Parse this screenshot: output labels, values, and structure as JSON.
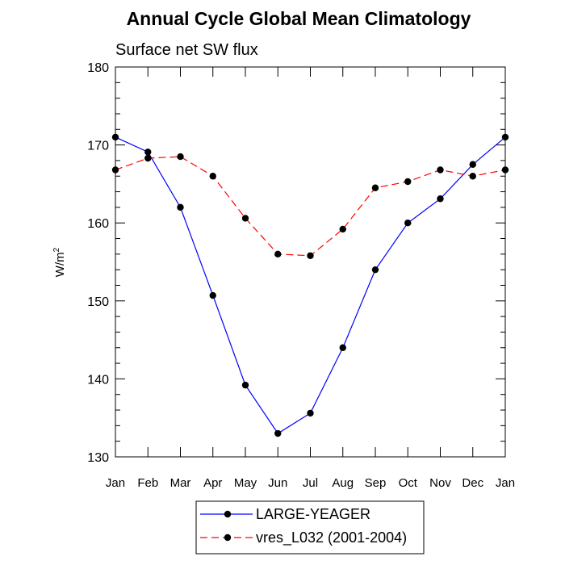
{
  "chart_data": {
    "type": "line",
    "title": "Annual Cycle Global Mean Climatology",
    "subtitle": "Surface net SW flux",
    "xlabel": "",
    "ylabel": "W/m",
    "ylabel_superscript": "2",
    "ylim": [
      130,
      180
    ],
    "yticks": [
      130,
      140,
      150,
      160,
      170,
      180
    ],
    "categories": [
      "Jan",
      "Feb",
      "Mar",
      "Apr",
      "May",
      "Jun",
      "Jul",
      "Aug",
      "Sep",
      "Oct",
      "Nov",
      "Dec",
      "Jan"
    ],
    "grid": false,
    "legend_placement": "bottom",
    "series": [
      {
        "name": "LARGE-YEAGER",
        "color": "#0000ff",
        "line_style": "solid",
        "marker": "filled-circle",
        "values": [
          171.0,
          169.1,
          162.0,
          150.7,
          139.2,
          133.0,
          135.6,
          144.0,
          154.0,
          160.0,
          163.1,
          167.5,
          171.0
        ]
      },
      {
        "name": "vres_L032 (2001-2004)",
        "color": "#ff0000",
        "line_style": "dashed",
        "marker": "filled-circle",
        "values": [
          166.8,
          168.3,
          168.5,
          166.0,
          160.6,
          156.0,
          155.8,
          159.2,
          164.5,
          165.3,
          166.8,
          166.0,
          166.8
        ]
      }
    ]
  }
}
